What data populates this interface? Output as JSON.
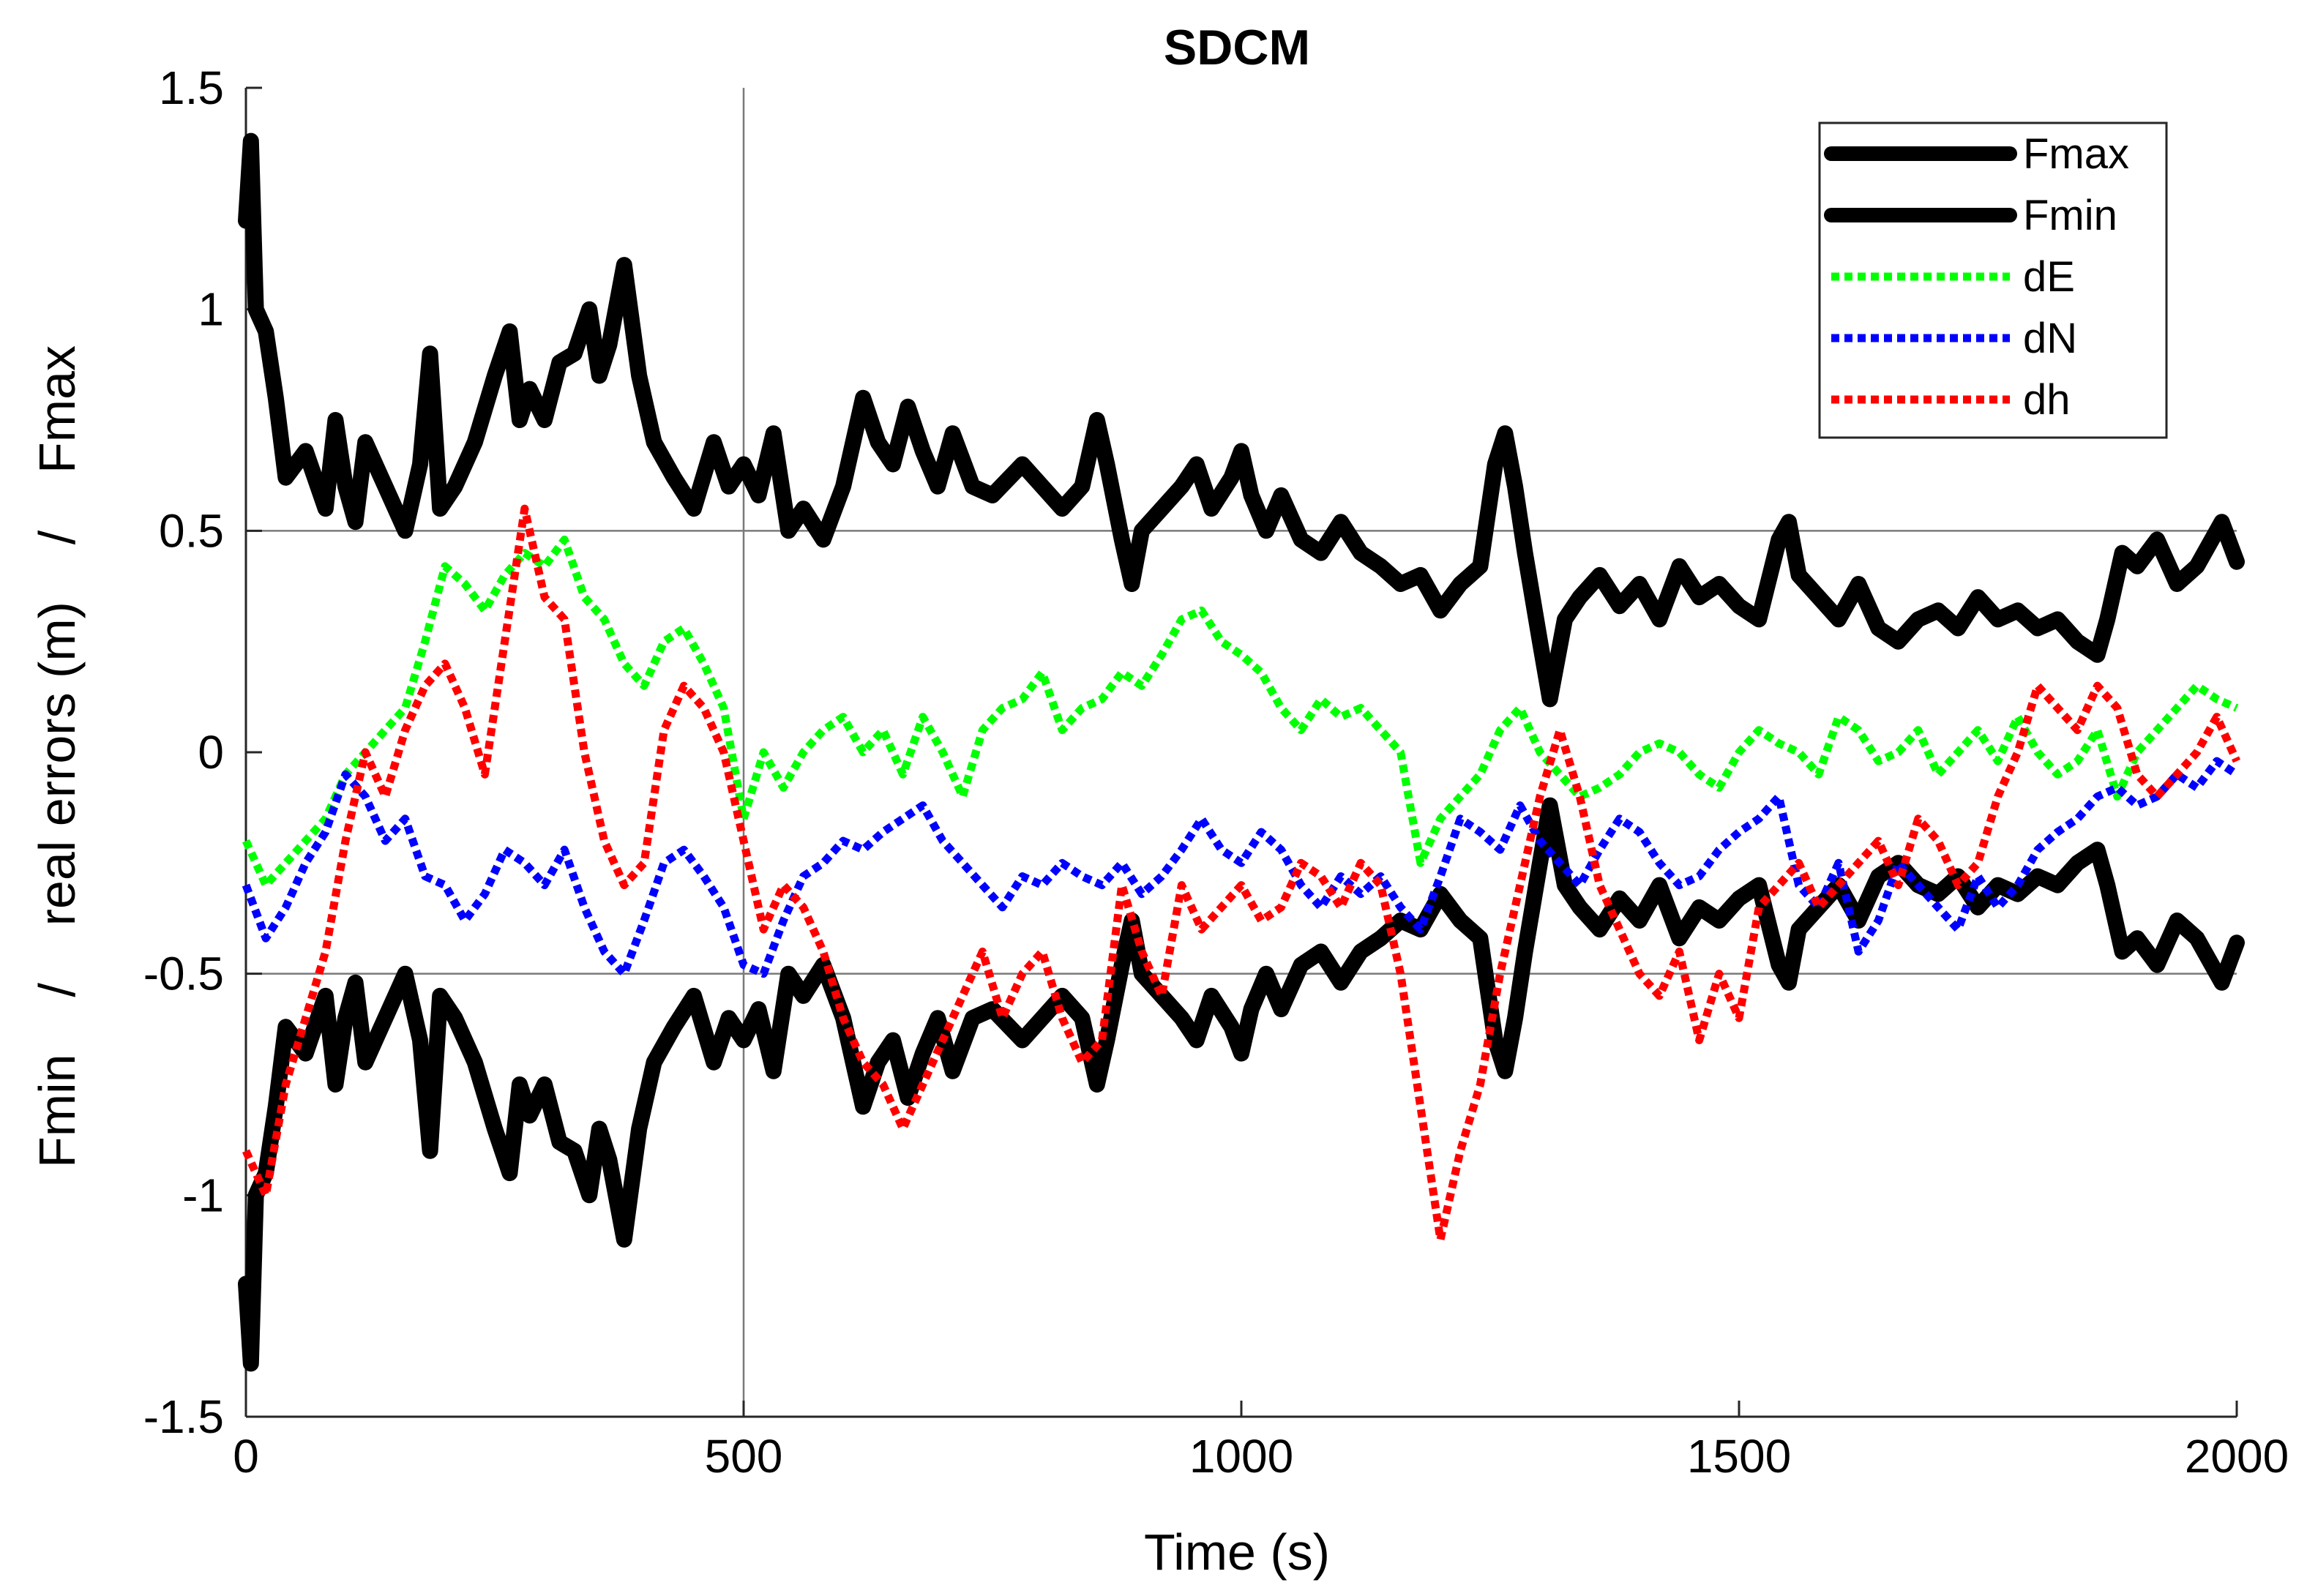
{
  "chart_data": {
    "type": "line",
    "title": "SDCM",
    "xlabel": "Time (s)",
    "ylabel": "Fmin    /    real errors (m)    /    Fmax",
    "xlim": [
      0,
      2000
    ],
    "ylim": [
      -1.5,
      1.5
    ],
    "x_ticks": [
      0,
      500,
      1000,
      1500,
      2000
    ],
    "x_tick_labels": [
      "0",
      "500",
      "1000",
      "1500",
      "2000"
    ],
    "y_ticks": [
      1.5,
      1,
      0.5,
      0,
      -0.5,
      -1,
      -1.5
    ],
    "y_tick_labels": [
      "1.5",
      "1",
      "0.5",
      "0",
      "-0.5",
      "-1",
      "-1.5"
    ],
    "reference_lines": {
      "horizontal": [
        0.5,
        -0.5
      ],
      "vertical": [
        500
      ]
    },
    "legend_position": "top-right",
    "series": [
      {
        "name": "Fmax",
        "color": "#000000",
        "style": "solid-thick",
        "x": [
          0,
          5,
          10,
          20,
          30,
          40,
          60,
          80,
          90,
          100,
          110,
          120,
          140,
          160,
          175,
          185,
          195,
          210,
          230,
          250,
          265,
          275,
          285,
          300,
          315,
          330,
          345,
          355,
          365,
          380,
          395,
          410,
          430,
          450,
          470,
          485,
          500,
          515,
          530,
          545,
          560,
          580,
          600,
          620,
          635,
          650,
          665,
          680,
          695,
          710,
          730,
          750,
          780,
          800,
          820,
          840,
          855,
          865,
          880,
          890,
          900,
          920,
          940,
          955,
          970,
          990,
          1000,
          1010,
          1025,
          1040,
          1060,
          1080,
          1100,
          1120,
          1140,
          1160,
          1180,
          1200,
          1220,
          1240,
          1255,
          1265,
          1275,
          1285,
          1300,
          1310,
          1325,
          1340,
          1360,
          1380,
          1400,
          1420,
          1440,
          1460,
          1480,
          1500,
          1520,
          1540,
          1550,
          1560,
          1580,
          1600,
          1620,
          1640,
          1660,
          1680,
          1700,
          1720,
          1740,
          1760,
          1780,
          1800,
          1820,
          1840,
          1860,
          1870,
          1885,
          1900,
          1920,
          1940,
          1960,
          1975,
          1985,
          2000
        ],
        "y": [
          1.2,
          1.38,
          1.0,
          0.95,
          0.8,
          0.62,
          0.68,
          0.55,
          0.75,
          0.6,
          0.52,
          0.7,
          0.6,
          0.5,
          0.65,
          0.9,
          0.55,
          0.6,
          0.7,
          0.85,
          0.95,
          0.75,
          0.82,
          0.75,
          0.88,
          0.9,
          1.0,
          0.85,
          0.92,
          1.1,
          0.85,
          0.7,
          0.62,
          0.55,
          0.7,
          0.6,
          0.65,
          0.58,
          0.72,
          0.5,
          0.55,
          0.48,
          0.6,
          0.8,
          0.7,
          0.65,
          0.78,
          0.68,
          0.6,
          0.72,
          0.6,
          0.58,
          0.65,
          0.6,
          0.55,
          0.6,
          0.75,
          0.65,
          0.48,
          0.38,
          0.5,
          0.55,
          0.6,
          0.65,
          0.55,
          0.62,
          0.68,
          0.58,
          0.5,
          0.58,
          0.48,
          0.45,
          0.52,
          0.45,
          0.42,
          0.38,
          0.4,
          0.32,
          0.38,
          0.42,
          0.65,
          0.72,
          0.6,
          0.45,
          0.25,
          0.12,
          0.3,
          0.35,
          0.4,
          0.33,
          0.38,
          0.3,
          0.42,
          0.35,
          0.38,
          0.33,
          0.3,
          0.48,
          0.52,
          0.4,
          0.35,
          0.3,
          0.38,
          0.28,
          0.25,
          0.3,
          0.32,
          0.28,
          0.35,
          0.3,
          0.32,
          0.28,
          0.3,
          0.25,
          0.22,
          0.3,
          0.45,
          0.42,
          0.48,
          0.38,
          0.42,
          0.48,
          0.52,
          0.43
        ]
      },
      {
        "name": "Fmin",
        "color": "#000000",
        "style": "solid-thick",
        "x": [
          0,
          5,
          10,
          20,
          30,
          40,
          60,
          80,
          90,
          100,
          110,
          120,
          140,
          160,
          175,
          185,
          195,
          210,
          230,
          250,
          265,
          275,
          285,
          300,
          315,
          330,
          345,
          355,
          365,
          380,
          395,
          410,
          430,
          450,
          470,
          485,
          500,
          515,
          530,
          545,
          560,
          580,
          600,
          620,
          635,
          650,
          665,
          680,
          695,
          710,
          730,
          750,
          780,
          800,
          820,
          840,
          855,
          865,
          880,
          890,
          900,
          920,
          940,
          955,
          970,
          990,
          1000,
          1010,
          1025,
          1040,
          1060,
          1080,
          1100,
          1120,
          1140,
          1160,
          1180,
          1200,
          1220,
          1240,
          1255,
          1265,
          1275,
          1285,
          1300,
          1310,
          1325,
          1340,
          1360,
          1380,
          1400,
          1420,
          1440,
          1460,
          1480,
          1500,
          1520,
          1540,
          1550,
          1560,
          1580,
          1600,
          1620,
          1640,
          1660,
          1680,
          1700,
          1720,
          1740,
          1760,
          1780,
          1800,
          1820,
          1840,
          1860,
          1870,
          1885,
          1900,
          1920,
          1940,
          1960,
          1975,
          1985,
          2000
        ],
        "y": [
          -1.2,
          -1.38,
          -1.0,
          -0.95,
          -0.8,
          -0.62,
          -0.68,
          -0.55,
          -0.75,
          -0.6,
          -0.52,
          -0.7,
          -0.6,
          -0.5,
          -0.65,
          -0.9,
          -0.55,
          -0.6,
          -0.7,
          -0.85,
          -0.95,
          -0.75,
          -0.82,
          -0.75,
          -0.88,
          -0.9,
          -1.0,
          -0.85,
          -0.92,
          -1.1,
          -0.85,
          -0.7,
          -0.62,
          -0.55,
          -0.7,
          -0.6,
          -0.65,
          -0.58,
          -0.72,
          -0.5,
          -0.55,
          -0.48,
          -0.6,
          -0.8,
          -0.7,
          -0.65,
          -0.78,
          -0.68,
          -0.6,
          -0.72,
          -0.6,
          -0.58,
          -0.65,
          -0.6,
          -0.55,
          -0.6,
          -0.75,
          -0.65,
          -0.48,
          -0.38,
          -0.5,
          -0.55,
          -0.6,
          -0.65,
          -0.55,
          -0.62,
          -0.68,
          -0.58,
          -0.5,
          -0.58,
          -0.48,
          -0.45,
          -0.52,
          -0.45,
          -0.42,
          -0.38,
          -0.4,
          -0.32,
          -0.38,
          -0.42,
          -0.65,
          -0.72,
          -0.6,
          -0.45,
          -0.25,
          -0.12,
          -0.3,
          -0.35,
          -0.4,
          -0.33,
          -0.38,
          -0.3,
          -0.42,
          -0.35,
          -0.38,
          -0.33,
          -0.3,
          -0.48,
          -0.52,
          -0.4,
          -0.35,
          -0.3,
          -0.38,
          -0.28,
          -0.25,
          -0.3,
          -0.32,
          -0.28,
          -0.35,
          -0.3,
          -0.32,
          -0.28,
          -0.3,
          -0.25,
          -0.22,
          -0.3,
          -0.45,
          -0.42,
          -0.48,
          -0.38,
          -0.42,
          -0.48,
          -0.52,
          -0.43
        ]
      },
      {
        "name": "dE",
        "color": "#00ff00",
        "style": "dotted",
        "x": [
          0,
          20,
          40,
          60,
          80,
          100,
          120,
          140,
          160,
          180,
          200,
          220,
          240,
          260,
          280,
          300,
          320,
          340,
          360,
          380,
          400,
          420,
          440,
          460,
          480,
          500,
          520,
          540,
          560,
          580,
          600,
          620,
          640,
          660,
          680,
          700,
          720,
          740,
          760,
          780,
          800,
          820,
          840,
          860,
          880,
          900,
          920,
          940,
          960,
          980,
          1000,
          1020,
          1040,
          1060,
          1080,
          1100,
          1120,
          1140,
          1160,
          1180,
          1200,
          1220,
          1240,
          1260,
          1280,
          1300,
          1320,
          1340,
          1360,
          1380,
          1400,
          1420,
          1440,
          1460,
          1480,
          1500,
          1520,
          1540,
          1560,
          1580,
          1600,
          1620,
          1640,
          1660,
          1680,
          1700,
          1720,
          1740,
          1760,
          1780,
          1800,
          1820,
          1840,
          1860,
          1880,
          1900,
          1920,
          1940,
          1960,
          1980,
          2000
        ],
        "y": [
          -0.2,
          -0.3,
          -0.25,
          -0.2,
          -0.15,
          -0.05,
          0.0,
          0.05,
          0.1,
          0.25,
          0.42,
          0.38,
          0.32,
          0.4,
          0.45,
          0.42,
          0.48,
          0.35,
          0.3,
          0.2,
          0.15,
          0.25,
          0.28,
          0.2,
          0.1,
          -0.15,
          0.0,
          -0.08,
          0.0,
          0.05,
          0.08,
          0.0,
          0.05,
          -0.05,
          0.08,
          0.0,
          -0.1,
          0.05,
          0.1,
          0.12,
          0.18,
          0.05,
          0.1,
          0.12,
          0.18,
          0.15,
          0.22,
          0.3,
          0.32,
          0.25,
          0.22,
          0.18,
          0.1,
          0.05,
          0.12,
          0.08,
          0.1,
          0.05,
          0.0,
          -0.25,
          -0.15,
          -0.1,
          -0.05,
          0.05,
          0.1,
          0.0,
          -0.05,
          -0.1,
          -0.08,
          -0.05,
          0.0,
          0.02,
          0.0,
          -0.05,
          -0.08,
          0.0,
          0.05,
          0.02,
          0.0,
          -0.05,
          0.08,
          0.05,
          -0.02,
          0.0,
          0.05,
          -0.05,
          0.0,
          0.05,
          -0.02,
          0.08,
          0.0,
          -0.05,
          -0.02,
          0.05,
          -0.1,
          0.0,
          0.05,
          0.1,
          0.15,
          0.12,
          0.1
        ]
      },
      {
        "name": "dN",
        "color": "#0000ff",
        "style": "dotted",
        "x": [
          0,
          20,
          40,
          60,
          80,
          100,
          120,
          140,
          160,
          180,
          200,
          220,
          240,
          260,
          280,
          300,
          320,
          340,
          360,
          380,
          400,
          420,
          440,
          460,
          480,
          500,
          520,
          540,
          560,
          580,
          600,
          620,
          640,
          660,
          680,
          700,
          720,
          740,
          760,
          780,
          800,
          820,
          840,
          860,
          880,
          900,
          920,
          940,
          960,
          980,
          1000,
          1020,
          1040,
          1060,
          1080,
          1100,
          1120,
          1140,
          1160,
          1180,
          1200,
          1220,
          1240,
          1260,
          1280,
          1300,
          1320,
          1340,
          1360,
          1380,
          1400,
          1420,
          1440,
          1460,
          1480,
          1500,
          1520,
          1540,
          1560,
          1580,
          1600,
          1620,
          1640,
          1660,
          1680,
          1700,
          1720,
          1740,
          1760,
          1780,
          1800,
          1820,
          1840,
          1860,
          1880,
          1900,
          1920,
          1940,
          1960,
          1980,
          2000
        ],
        "y": [
          -0.3,
          -0.42,
          -0.35,
          -0.25,
          -0.18,
          -0.05,
          -0.1,
          -0.2,
          -0.15,
          -0.28,
          -0.3,
          -0.38,
          -0.32,
          -0.22,
          -0.25,
          -0.3,
          -0.22,
          -0.35,
          -0.45,
          -0.5,
          -0.38,
          -0.25,
          -0.22,
          -0.28,
          -0.35,
          -0.48,
          -0.5,
          -0.38,
          -0.28,
          -0.25,
          -0.2,
          -0.22,
          -0.18,
          -0.15,
          -0.12,
          -0.2,
          -0.25,
          -0.3,
          -0.35,
          -0.28,
          -0.3,
          -0.25,
          -0.28,
          -0.3,
          -0.25,
          -0.32,
          -0.28,
          -0.22,
          -0.15,
          -0.22,
          -0.25,
          -0.18,
          -0.22,
          -0.3,
          -0.35,
          -0.28,
          -0.32,
          -0.28,
          -0.35,
          -0.4,
          -0.28,
          -0.15,
          -0.18,
          -0.22,
          -0.12,
          -0.2,
          -0.25,
          -0.3,
          -0.22,
          -0.15,
          -0.18,
          -0.25,
          -0.3,
          -0.28,
          -0.22,
          -0.18,
          -0.15,
          -0.1,
          -0.3,
          -0.35,
          -0.25,
          -0.45,
          -0.38,
          -0.25,
          -0.3,
          -0.35,
          -0.4,
          -0.28,
          -0.35,
          -0.3,
          -0.22,
          -0.18,
          -0.15,
          -0.1,
          -0.08,
          -0.12,
          -0.1,
          -0.05,
          -0.08,
          -0.02,
          -0.05
        ]
      },
      {
        "name": "dh",
        "color": "#ff0000",
        "style": "dotted",
        "x": [
          0,
          20,
          40,
          60,
          80,
          100,
          120,
          140,
          160,
          180,
          200,
          220,
          240,
          260,
          280,
          300,
          320,
          340,
          360,
          380,
          400,
          420,
          440,
          460,
          480,
          500,
          520,
          540,
          560,
          580,
          600,
          620,
          640,
          660,
          680,
          700,
          720,
          740,
          760,
          780,
          800,
          820,
          840,
          860,
          880,
          900,
          920,
          940,
          960,
          980,
          1000,
          1020,
          1040,
          1060,
          1080,
          1100,
          1120,
          1140,
          1160,
          1180,
          1200,
          1220,
          1240,
          1260,
          1280,
          1300,
          1320,
          1340,
          1360,
          1380,
          1400,
          1420,
          1440,
          1460,
          1480,
          1500,
          1520,
          1540,
          1560,
          1580,
          1600,
          1620,
          1640,
          1660,
          1680,
          1700,
          1720,
          1740,
          1760,
          1780,
          1800,
          1820,
          1840,
          1860,
          1880,
          1900,
          1920,
          1940,
          1960,
          1980,
          2000
        ],
        "y": [
          -0.9,
          -1.0,
          -0.75,
          -0.6,
          -0.45,
          -0.2,
          0.0,
          -0.1,
          0.05,
          0.15,
          0.2,
          0.1,
          -0.05,
          0.25,
          0.55,
          0.35,
          0.3,
          0.0,
          -0.2,
          -0.3,
          -0.25,
          0.05,
          0.15,
          0.1,
          0.0,
          -0.2,
          -0.4,
          -0.3,
          -0.35,
          -0.45,
          -0.6,
          -0.7,
          -0.75,
          -0.85,
          -0.75,
          -0.65,
          -0.55,
          -0.45,
          -0.6,
          -0.5,
          -0.45,
          -0.6,
          -0.7,
          -0.65,
          -0.3,
          -0.45,
          -0.55,
          -0.3,
          -0.4,
          -0.35,
          -0.3,
          -0.38,
          -0.35,
          -0.25,
          -0.28,
          -0.35,
          -0.25,
          -0.3,
          -0.5,
          -0.8,
          -1.1,
          -0.9,
          -0.75,
          -0.5,
          -0.3,
          -0.1,
          0.05,
          -0.1,
          -0.3,
          -0.4,
          -0.5,
          -0.55,
          -0.45,
          -0.65,
          -0.5,
          -0.6,
          -0.35,
          -0.3,
          -0.25,
          -0.35,
          -0.3,
          -0.25,
          -0.2,
          -0.3,
          -0.15,
          -0.2,
          -0.3,
          -0.25,
          -0.1,
          0.0,
          0.15,
          0.1,
          0.05,
          0.15,
          0.1,
          -0.05,
          -0.1,
          -0.05,
          0.0,
          0.08,
          -0.02
        ]
      }
    ]
  }
}
